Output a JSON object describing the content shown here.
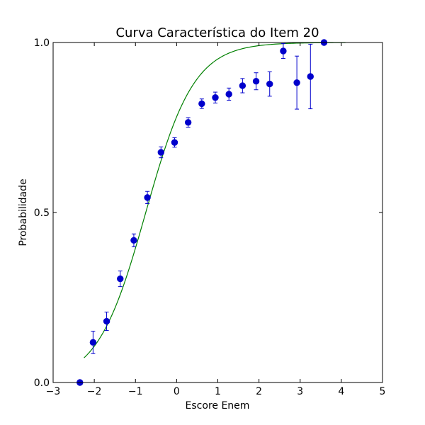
{
  "chart_data": {
    "type": "scatter",
    "title": "Curva Característica do Item 20",
    "xlabel": "Escore Enem",
    "ylabel": "Probabilidade",
    "xlim": [
      -3,
      5
    ],
    "ylim": [
      0,
      1
    ],
    "x_ticks": [
      "−3",
      "−2",
      "−1",
      "0",
      "1",
      "2",
      "3",
      "4",
      "5"
    ],
    "y_ticks": [
      "0.0",
      "0.5",
      "1.0"
    ],
    "colors": {
      "points": "#0000cc",
      "curve": "#008000",
      "axes": "#000000"
    },
    "points": [
      {
        "x": -2.35,
        "y": 0.0,
        "err": 0.0
      },
      {
        "x": -2.03,
        "y": 0.118,
        "err": 0.033
      },
      {
        "x": -1.7,
        "y": 0.18,
        "err": 0.027
      },
      {
        "x": -1.37,
        "y": 0.305,
        "err": 0.023
      },
      {
        "x": -1.04,
        "y": 0.418,
        "err": 0.019
      },
      {
        "x": -0.71,
        "y": 0.544,
        "err": 0.018
      },
      {
        "x": -0.38,
        "y": 0.677,
        "err": 0.016
      },
      {
        "x": -0.05,
        "y": 0.706,
        "err": 0.014
      },
      {
        "x": 0.28,
        "y": 0.765,
        "err": 0.014
      },
      {
        "x": 0.61,
        "y": 0.82,
        "err": 0.014
      },
      {
        "x": 0.94,
        "y": 0.838,
        "err": 0.016
      },
      {
        "x": 1.27,
        "y": 0.848,
        "err": 0.018
      },
      {
        "x": 1.6,
        "y": 0.873,
        "err": 0.021
      },
      {
        "x": 1.93,
        "y": 0.886,
        "err": 0.025
      },
      {
        "x": 2.26,
        "y": 0.878,
        "err": 0.036
      },
      {
        "x": 2.59,
        "y": 0.975,
        "err": 0.022
      },
      {
        "x": 2.92,
        "y": 0.882,
        "err": 0.078
      },
      {
        "x": 3.25,
        "y": 0.9,
        "err": 0.095
      },
      {
        "x": 3.58,
        "y": 1.0,
        "err": 0.0
      }
    ],
    "curve": {
      "model": "logistic",
      "a": 1.7,
      "b": -0.75,
      "c": 0.0,
      "x_range": [
        -2.25,
        4.1
      ]
    }
  }
}
